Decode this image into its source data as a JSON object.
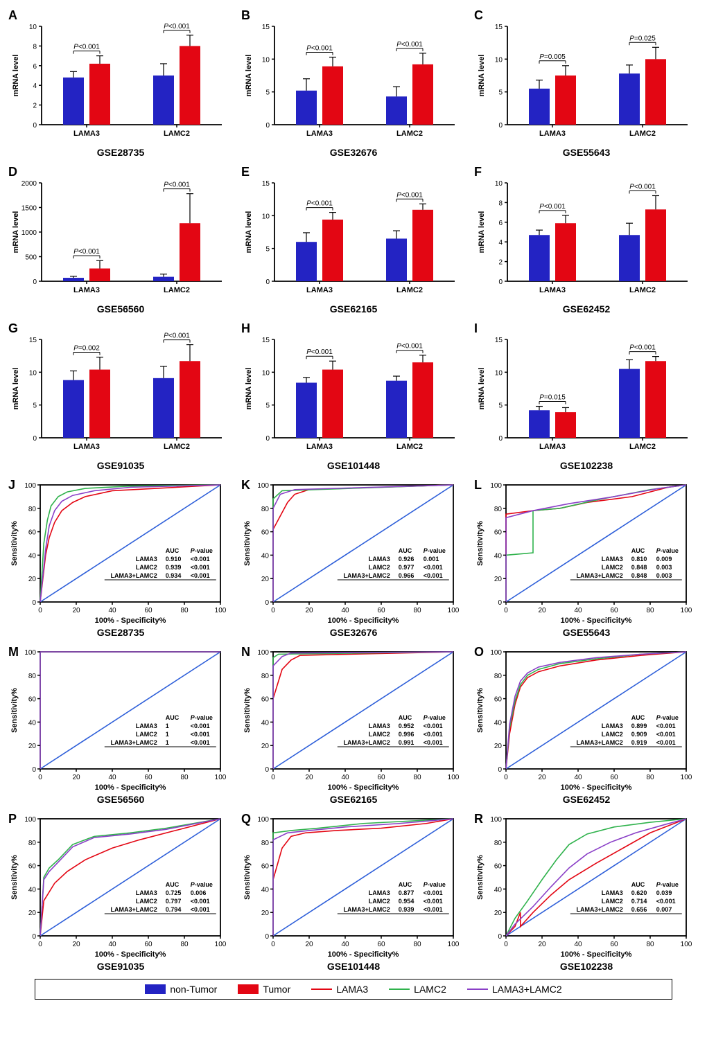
{
  "colors": {
    "nonTumor": "#2323c3",
    "tumor": "#e30613",
    "lama3_line": "#e30613",
    "lamc2_line": "#2fb24c",
    "combo_line": "#8a3fc7",
    "diagonal": "#2e5fd9",
    "axis": "#000000",
    "grid": "#000000"
  },
  "legend": {
    "nonTumor": "non-Tumor",
    "tumor": "Tumor",
    "lama3": "LAMA3",
    "lamc2": "LAMC2",
    "combo": "LAMA3+LAMC2"
  },
  "barPanels": [
    {
      "id": "A",
      "title": "GSE28735",
      "ymax": 10,
      "ystep": 2,
      "data": {
        "LAMA3": {
          "nt": 4.8,
          "nt_err": 0.6,
          "t": 6.2,
          "t_err": 0.8,
          "p": "P<0.001"
        },
        "LAMC2": {
          "nt": 5.0,
          "nt_err": 1.2,
          "t": 8.0,
          "t_err": 1.1,
          "p": "P<0.001"
        }
      }
    },
    {
      "id": "B",
      "title": "GSE32676",
      "ymax": 15,
      "ystep": 5,
      "data": {
        "LAMA3": {
          "nt": 5.2,
          "nt_err": 1.8,
          "t": 8.9,
          "t_err": 1.4,
          "p": "P<0.001"
        },
        "LAMC2": {
          "nt": 4.3,
          "nt_err": 1.5,
          "t": 9.2,
          "t_err": 1.7,
          "p": "P<0.001"
        }
      }
    },
    {
      "id": "C",
      "title": "GSE55643",
      "ymax": 15,
      "ystep": 5,
      "data": {
        "LAMA3": {
          "nt": 5.5,
          "nt_err": 1.3,
          "t": 7.5,
          "t_err": 1.5,
          "p": "P=0.005"
        },
        "LAMC2": {
          "nt": 7.8,
          "nt_err": 1.3,
          "t": 10.0,
          "t_err": 1.8,
          "p": "P=0.025"
        }
      }
    },
    {
      "id": "D",
      "title": "GSE56560",
      "ymax": 2000,
      "ystep": 500,
      "data": {
        "LAMA3": {
          "nt": 70,
          "nt_err": 30,
          "t": 260,
          "t_err": 160,
          "p": "P<0.001"
        },
        "LAMC2": {
          "nt": 90,
          "nt_err": 55,
          "t": 1180,
          "t_err": 600,
          "p": "P<0.001"
        }
      }
    },
    {
      "id": "E",
      "title": "GSE62165",
      "ymax": 15,
      "ystep": 5,
      "data": {
        "LAMA3": {
          "nt": 6.0,
          "nt_err": 1.4,
          "t": 9.4,
          "t_err": 1.1,
          "p": "P<0.001"
        },
        "LAMC2": {
          "nt": 6.5,
          "nt_err": 1.2,
          "t": 10.9,
          "t_err": 0.9,
          "p": "P<0.001"
        }
      }
    },
    {
      "id": "F",
      "title": "GSE62452",
      "ymax": 10,
      "ystep": 2,
      "data": {
        "LAMA3": {
          "nt": 4.7,
          "nt_err": 0.5,
          "t": 5.9,
          "t_err": 0.8,
          "p": "P<0.001"
        },
        "LAMC2": {
          "nt": 4.7,
          "nt_err": 1.2,
          "t": 7.3,
          "t_err": 1.4,
          "p": "P<0.001"
        }
      }
    },
    {
      "id": "G",
      "title": "GSE91035",
      "ymax": 15,
      "ystep": 5,
      "data": {
        "LAMA3": {
          "nt": 8.8,
          "nt_err": 1.4,
          "t": 10.4,
          "t_err": 1.9,
          "p": "P=0.002"
        },
        "LAMC2": {
          "nt": 9.1,
          "nt_err": 1.8,
          "t": 11.7,
          "t_err": 2.5,
          "p": "P<0.001"
        }
      }
    },
    {
      "id": "H",
      "title": "GSE101448",
      "ymax": 15,
      "ystep": 5,
      "data": {
        "LAMA3": {
          "nt": 8.4,
          "nt_err": 0.8,
          "t": 10.4,
          "t_err": 1.3,
          "p": "P<0.001"
        },
        "LAMC2": {
          "nt": 8.7,
          "nt_err": 0.7,
          "t": 11.5,
          "t_err": 1.1,
          "p": "P<0.001"
        }
      }
    },
    {
      "id": "I",
      "title": "GSE102238",
      "ymax": 15,
      "ystep": 5,
      "data": {
        "LAMA3": {
          "nt": 4.2,
          "nt_err": 0.6,
          "t": 3.9,
          "t_err": 0.7,
          "p": "P=0.015"
        },
        "LAMC2": {
          "nt": 10.5,
          "nt_err": 1.4,
          "t": 11.7,
          "t_err": 0.7,
          "p": "P<0.001"
        }
      }
    }
  ],
  "rocPanels": [
    {
      "id": "J",
      "title": "GSE28735",
      "table": [
        [
          "LAMA3",
          "0.910",
          "<0.001"
        ],
        [
          "LAMC2",
          "0.939",
          "<0.001"
        ],
        [
          "LAMA3+LAMC2",
          "0.934",
          "<0.001"
        ]
      ],
      "curves": {
        "lama3": [
          [
            0,
            0
          ],
          [
            3,
            40
          ],
          [
            5,
            55
          ],
          [
            8,
            68
          ],
          [
            12,
            78
          ],
          [
            18,
            85
          ],
          [
            25,
            90
          ],
          [
            40,
            95
          ],
          [
            100,
            100
          ]
        ],
        "lamc2": [
          [
            0,
            0
          ],
          [
            2,
            50
          ],
          [
            4,
            70
          ],
          [
            6,
            82
          ],
          [
            10,
            90
          ],
          [
            15,
            94
          ],
          [
            25,
            97
          ],
          [
            50,
            99
          ],
          [
            100,
            100
          ]
        ],
        "combo": [
          [
            0,
            0
          ],
          [
            3,
            45
          ],
          [
            5,
            65
          ],
          [
            8,
            78
          ],
          [
            12,
            86
          ],
          [
            18,
            91
          ],
          [
            30,
            95
          ],
          [
            50,
            98
          ],
          [
            100,
            100
          ]
        ]
      }
    },
    {
      "id": "K",
      "title": "GSE32676",
      "table": [
        [
          "LAMA3",
          "0.926",
          "0.001"
        ],
        [
          "LAMC2",
          "0.977",
          "<0.001"
        ],
        [
          "LAMA3+LAMC2",
          "0.966",
          "<0.001"
        ]
      ],
      "curves": {
        "lama3": [
          [
            0,
            0
          ],
          [
            0,
            62
          ],
          [
            8,
            85
          ],
          [
            12,
            92
          ],
          [
            20,
            96
          ],
          [
            100,
            100
          ]
        ],
        "lamc2": [
          [
            0,
            0
          ],
          [
            0,
            88
          ],
          [
            5,
            95
          ],
          [
            100,
            100
          ]
        ],
        "combo": [
          [
            0,
            0
          ],
          [
            0,
            80
          ],
          [
            4,
            92
          ],
          [
            12,
            96
          ],
          [
            100,
            100
          ]
        ]
      }
    },
    {
      "id": "L",
      "title": "GSE55643",
      "table": [
        [
          "LAMA3",
          "0.810",
          "0.009"
        ],
        [
          "LAMC2",
          "0.848",
          "0.003"
        ],
        [
          "LAMA3+LAMC2",
          "0.848",
          "0.003"
        ]
      ],
      "curves": {
        "lama3": [
          [
            0,
            0
          ],
          [
            0,
            75
          ],
          [
            15,
            78
          ],
          [
            30,
            80
          ],
          [
            45,
            85
          ],
          [
            70,
            90
          ],
          [
            90,
            98
          ],
          [
            100,
            100
          ]
        ],
        "lamc2": [
          [
            0,
            0
          ],
          [
            0,
            40
          ],
          [
            15,
            42
          ],
          [
            15,
            78
          ],
          [
            30,
            80
          ],
          [
            50,
            87
          ],
          [
            80,
            96
          ],
          [
            100,
            100
          ]
        ],
        "combo": [
          [
            0,
            0
          ],
          [
            0,
            72
          ],
          [
            15,
            78
          ],
          [
            35,
            84
          ],
          [
            60,
            90
          ],
          [
            85,
            97
          ],
          [
            100,
            100
          ]
        ]
      }
    },
    {
      "id": "M",
      "title": "GSE56560",
      "table": [
        [
          "LAMA3",
          "1",
          "<0.001"
        ],
        [
          "LAMC2",
          "1",
          "<0.001"
        ],
        [
          "LAMA3+LAMC2",
          "1",
          "<0.001"
        ]
      ],
      "curves": {
        "lama3": [
          [
            0,
            0
          ],
          [
            0,
            100
          ],
          [
            100,
            100
          ]
        ],
        "lamc2": [
          [
            0,
            0
          ],
          [
            0,
            100
          ],
          [
            100,
            100
          ]
        ],
        "combo": [
          [
            0,
            0
          ],
          [
            0,
            100
          ],
          [
            100,
            100
          ]
        ]
      }
    },
    {
      "id": "N",
      "title": "GSE62165",
      "table": [
        [
          "LAMA3",
          "0.952",
          "<0.001"
        ],
        [
          "LAMC2",
          "0.996",
          "<0.001"
        ],
        [
          "LAMA3+LAMC2",
          "0.991",
          "<0.001"
        ]
      ],
      "curves": {
        "lama3": [
          [
            0,
            0
          ],
          [
            0,
            60
          ],
          [
            5,
            85
          ],
          [
            10,
            93
          ],
          [
            15,
            97
          ],
          [
            100,
            100
          ]
        ],
        "lamc2": [
          [
            0,
            0
          ],
          [
            0,
            95
          ],
          [
            3,
            98
          ],
          [
            100,
            100
          ]
        ],
        "combo": [
          [
            0,
            0
          ],
          [
            0,
            88
          ],
          [
            5,
            96
          ],
          [
            10,
            99
          ],
          [
            100,
            100
          ]
        ]
      }
    },
    {
      "id": "O",
      "title": "GSE62452",
      "table": [
        [
          "LAMA3",
          "0.899",
          "<0.001"
        ],
        [
          "LAMC2",
          "0.909",
          "<0.001"
        ],
        [
          "LAMA3+LAMC2",
          "0.919",
          "<0.001"
        ]
      ],
      "curves": {
        "lama3": [
          [
            0,
            0
          ],
          [
            2,
            30
          ],
          [
            5,
            55
          ],
          [
            8,
            70
          ],
          [
            12,
            78
          ],
          [
            18,
            83
          ],
          [
            30,
            88
          ],
          [
            50,
            93
          ],
          [
            75,
            97
          ],
          [
            100,
            100
          ]
        ],
        "lamc2": [
          [
            0,
            0
          ],
          [
            2,
            35
          ],
          [
            5,
            58
          ],
          [
            8,
            72
          ],
          [
            12,
            80
          ],
          [
            18,
            85
          ],
          [
            30,
            90
          ],
          [
            50,
            94
          ],
          [
            75,
            98
          ],
          [
            100,
            100
          ]
        ],
        "combo": [
          [
            0,
            0
          ],
          [
            2,
            38
          ],
          [
            5,
            62
          ],
          [
            8,
            75
          ],
          [
            12,
            82
          ],
          [
            18,
            87
          ],
          [
            30,
            91
          ],
          [
            50,
            95
          ],
          [
            75,
            98
          ],
          [
            100,
            100
          ]
        ]
      }
    },
    {
      "id": "P",
      "title": "GSE91035",
      "table": [
        [
          "LAMA3",
          "0.725",
          "0.006"
        ],
        [
          "LAMC2",
          "0.797",
          "<0.001"
        ],
        [
          "LAMA3+LAMC2",
          "0.794",
          "<0.001"
        ]
      ],
      "curves": {
        "lama3": [
          [
            0,
            0
          ],
          [
            2,
            30
          ],
          [
            8,
            45
          ],
          [
            15,
            55
          ],
          [
            25,
            65
          ],
          [
            40,
            75
          ],
          [
            55,
            82
          ],
          [
            75,
            90
          ],
          [
            100,
            100
          ]
        ],
        "lamc2": [
          [
            0,
            0
          ],
          [
            2,
            50
          ],
          [
            5,
            58
          ],
          [
            10,
            65
          ],
          [
            18,
            78
          ],
          [
            30,
            85
          ],
          [
            50,
            88
          ],
          [
            70,
            92
          ],
          [
            100,
            100
          ]
        ],
        "combo": [
          [
            0,
            0
          ],
          [
            2,
            48
          ],
          [
            5,
            55
          ],
          [
            10,
            63
          ],
          [
            18,
            76
          ],
          [
            30,
            84
          ],
          [
            50,
            87
          ],
          [
            70,
            91
          ],
          [
            100,
            100
          ]
        ]
      }
    },
    {
      "id": "Q",
      "title": "GSE101448",
      "table": [
        [
          "LAMA3",
          "0.877",
          "<0.001"
        ],
        [
          "LAMC2",
          "0.954",
          "<0.001"
        ],
        [
          "LAMA3+LAMC2",
          "0.939",
          "<0.001"
        ]
      ],
      "curves": {
        "lama3": [
          [
            0,
            0
          ],
          [
            0,
            48
          ],
          [
            5,
            75
          ],
          [
            10,
            85
          ],
          [
            18,
            88
          ],
          [
            35,
            90
          ],
          [
            60,
            92
          ],
          [
            85,
            96
          ],
          [
            100,
            100
          ]
        ],
        "lamc2": [
          [
            0,
            0
          ],
          [
            0,
            88
          ],
          [
            10,
            90
          ],
          [
            25,
            92
          ],
          [
            50,
            96
          ],
          [
            100,
            100
          ]
        ],
        "combo": [
          [
            0,
            0
          ],
          [
            0,
            82
          ],
          [
            8,
            88
          ],
          [
            20,
            90
          ],
          [
            40,
            93
          ],
          [
            70,
            96
          ],
          [
            100,
            100
          ]
        ]
      }
    },
    {
      "id": "R",
      "title": "GSE102238",
      "table": [
        [
          "LAMA3",
          "0.620",
          "0.039"
        ],
        [
          "LAMC2",
          "0.714",
          "<0.001"
        ],
        [
          "LAMA3+LAMC2",
          "0.656",
          "0.007"
        ]
      ],
      "curves": {
        "lama3": [
          [
            0,
            0
          ],
          [
            5,
            8
          ],
          [
            8,
            20
          ],
          [
            8,
            8
          ],
          [
            15,
            20
          ],
          [
            25,
            35
          ],
          [
            35,
            48
          ],
          [
            50,
            62
          ],
          [
            65,
            75
          ],
          [
            80,
            88
          ],
          [
            100,
            100
          ]
        ],
        "lamc2": [
          [
            0,
            0
          ],
          [
            5,
            15
          ],
          [
            12,
            30
          ],
          [
            20,
            48
          ],
          [
            28,
            65
          ],
          [
            35,
            78
          ],
          [
            45,
            87
          ],
          [
            60,
            93
          ],
          [
            80,
            97
          ],
          [
            100,
            100
          ]
        ],
        "combo": [
          [
            0,
            0
          ],
          [
            5,
            10
          ],
          [
            15,
            25
          ],
          [
            25,
            42
          ],
          [
            35,
            58
          ],
          [
            45,
            70
          ],
          [
            58,
            80
          ],
          [
            72,
            88
          ],
          [
            88,
            95
          ],
          [
            100,
            100
          ]
        ]
      }
    }
  ],
  "axisLabels": {
    "bar_y": "mRNA level",
    "roc_y": "Sensitivity%",
    "roc_x": "100% - Specificity%",
    "roc_header_auc": "AUC",
    "roc_header_p": "P-value"
  }
}
